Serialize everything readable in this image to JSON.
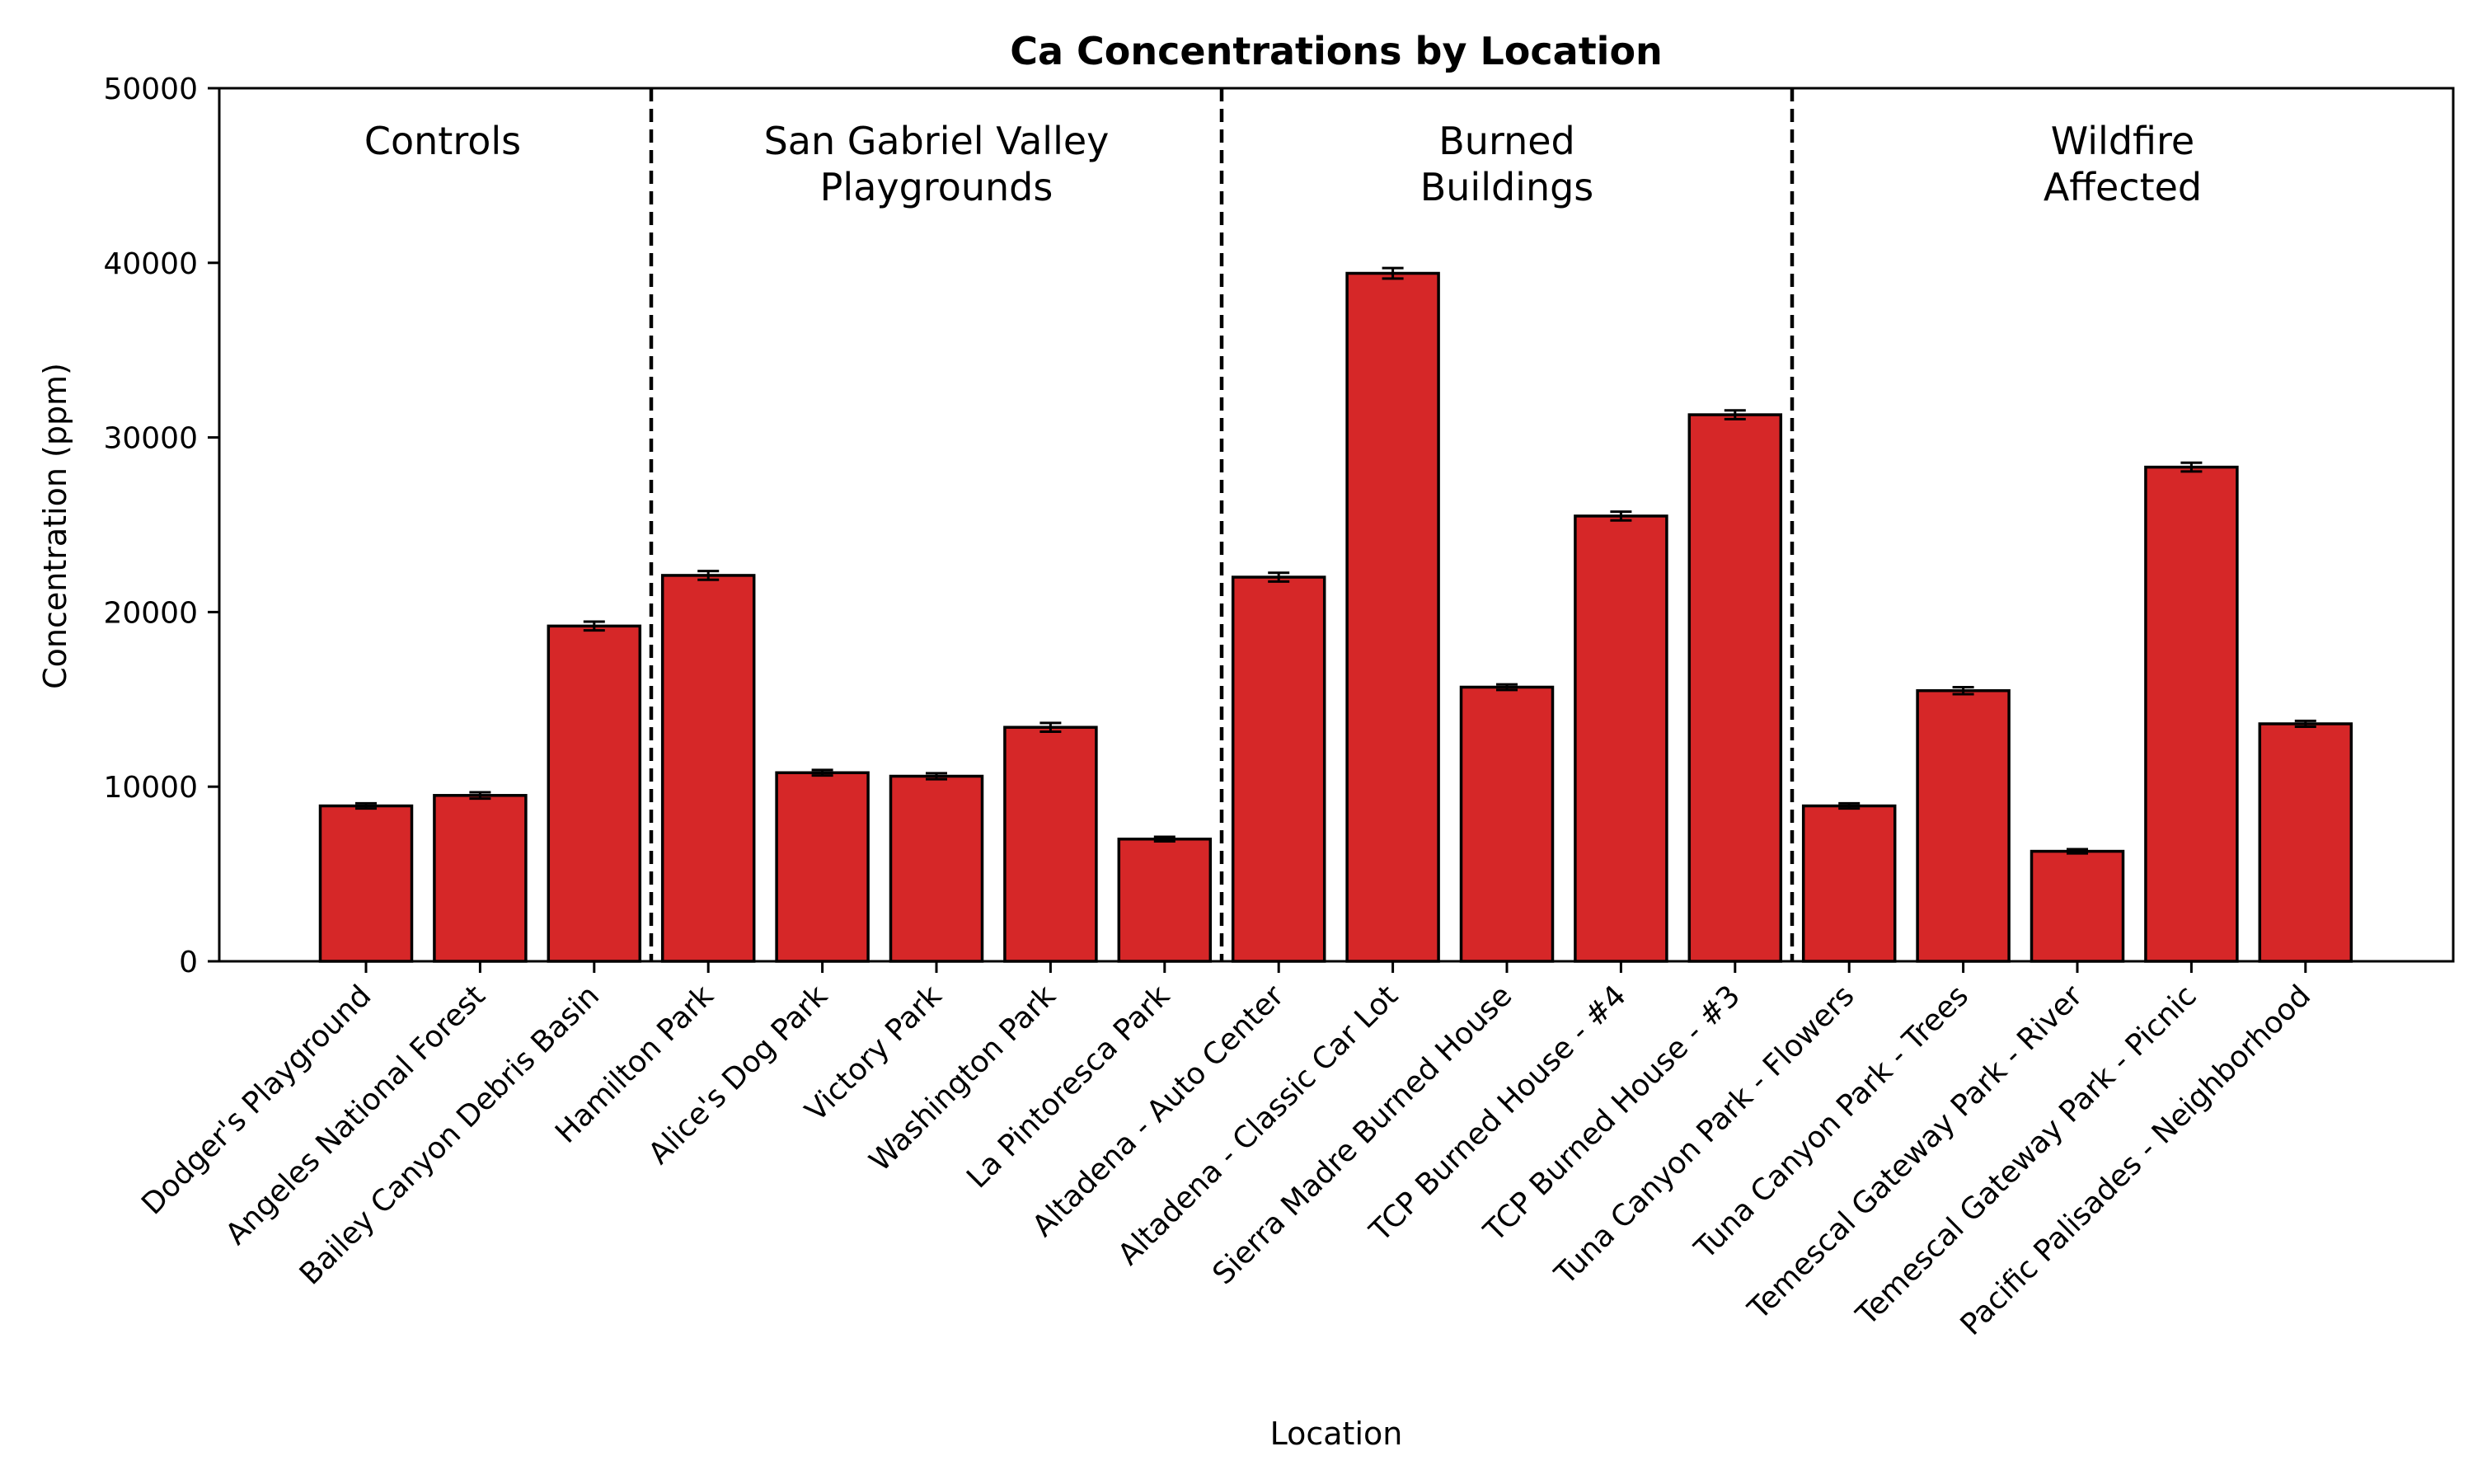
{
  "chart_data": {
    "type": "bar",
    "title": "Ca Concentrations by Location",
    "xlabel": "Location",
    "ylabel": "Concentration (ppm)",
    "ylim": [
      0,
      50000
    ],
    "yticks": [
      0,
      10000,
      20000,
      30000,
      40000,
      50000
    ],
    "grid": false,
    "bar_color": "#d62728",
    "edge_color": "#000000",
    "categories": [
      "Dodger's Playground",
      "Angeles National Forest",
      "Bailey Canyon Debris Basin",
      "Hamilton Park",
      "Alice's Dog Park",
      "Victory Park",
      "Washington Park",
      "La Pintoresca Park",
      "Altadena - Auto Center",
      "Altadena - Classic Car Lot",
      "Sierra Madre Burned House",
      "TCP Burned House - #4",
      "TCP Burned House - #3",
      "Tuna Canyon Park - Flowers",
      "Tuna Canyon Park - Trees",
      "Temescal Gateway Park - River",
      "Temescal Gateway Park - Picnic",
      "Pacific Palisades - Neighborhood"
    ],
    "values": [
      8900,
      9500,
      19200,
      22100,
      10800,
      10600,
      13400,
      7000,
      22000,
      39400,
      15700,
      25500,
      31300,
      8900,
      15500,
      6300,
      28300,
      13600
    ],
    "errors": [
      150,
      180,
      250,
      250,
      160,
      170,
      250,
      130,
      250,
      300,
      160,
      250,
      250,
      150,
      200,
      120,
      250,
      170
    ],
    "groups": [
      {
        "label": [
          "Controls"
        ],
        "start": 0,
        "end": 2
      },
      {
        "label": [
          "San Gabriel Valley",
          "Playgrounds"
        ],
        "start": 3,
        "end": 7
      },
      {
        "label": [
          "Burned",
          "Buildings"
        ],
        "start": 8,
        "end": 12
      },
      {
        "label": [
          "Wildfire",
          "Affected"
        ],
        "start": 13,
        "end": 17
      }
    ]
  }
}
